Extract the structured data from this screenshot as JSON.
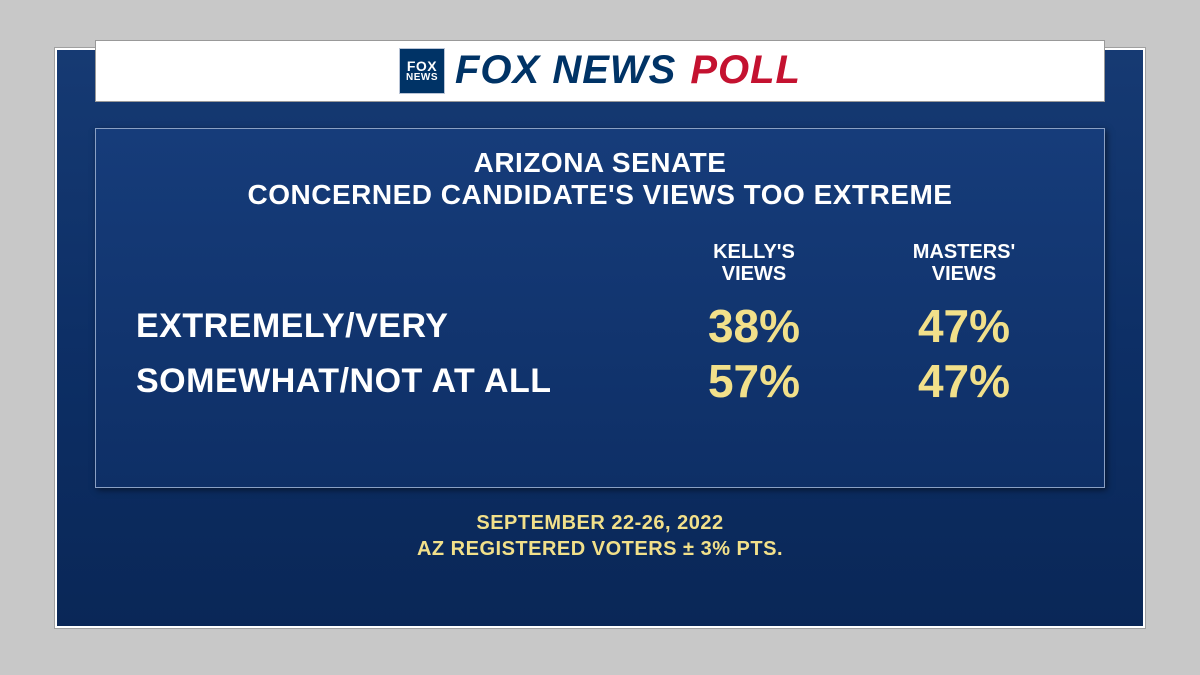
{
  "brand": {
    "badge_line1": "FOX",
    "badge_line2": "NEWS",
    "text_left": "FOX NEWS",
    "text_right": "POLL",
    "colors": {
      "navy": "#003366",
      "red": "#c41230",
      "bar_bg": "#ffffff"
    }
  },
  "panel": {
    "title_line1": "ARIZONA SENATE",
    "title_line2": "CONCERNED CANDIDATE'S VIEWS TOO EXTREME",
    "columns": [
      {
        "line1": "KELLY'S",
        "line2": "VIEWS"
      },
      {
        "line1": "MASTERS'",
        "line2": "VIEWS"
      }
    ],
    "rows": [
      {
        "label": "EXTREMELY/VERY",
        "values": [
          "38%",
          "47%"
        ]
      },
      {
        "label": "SOMEWHAT/NOT AT ALL",
        "values": [
          "57%",
          "47%"
        ]
      }
    ],
    "colors": {
      "panel_bg_top": "#163c7a",
      "panel_bg_bottom": "#0e2f66",
      "panel_border": "#8aa0c4",
      "text": "#ffffff",
      "value": "#f2e08a"
    },
    "typography": {
      "title_fontsize": 28,
      "col_header_fontsize": 20,
      "row_label_fontsize": 34,
      "value_fontsize": 46
    }
  },
  "footer": {
    "line1": "SEPTEMBER 22-26, 2022",
    "line2": "AZ REGISTERED VOTERS ± 3% PTS.",
    "color": "#f2e08a",
    "fontsize": 20
  },
  "frame": {
    "bg_gradient": [
      "#163a73",
      "#0d2f66",
      "#0a2757"
    ],
    "border_color": "#ffffff",
    "page_bg": "#c8c8c8"
  }
}
